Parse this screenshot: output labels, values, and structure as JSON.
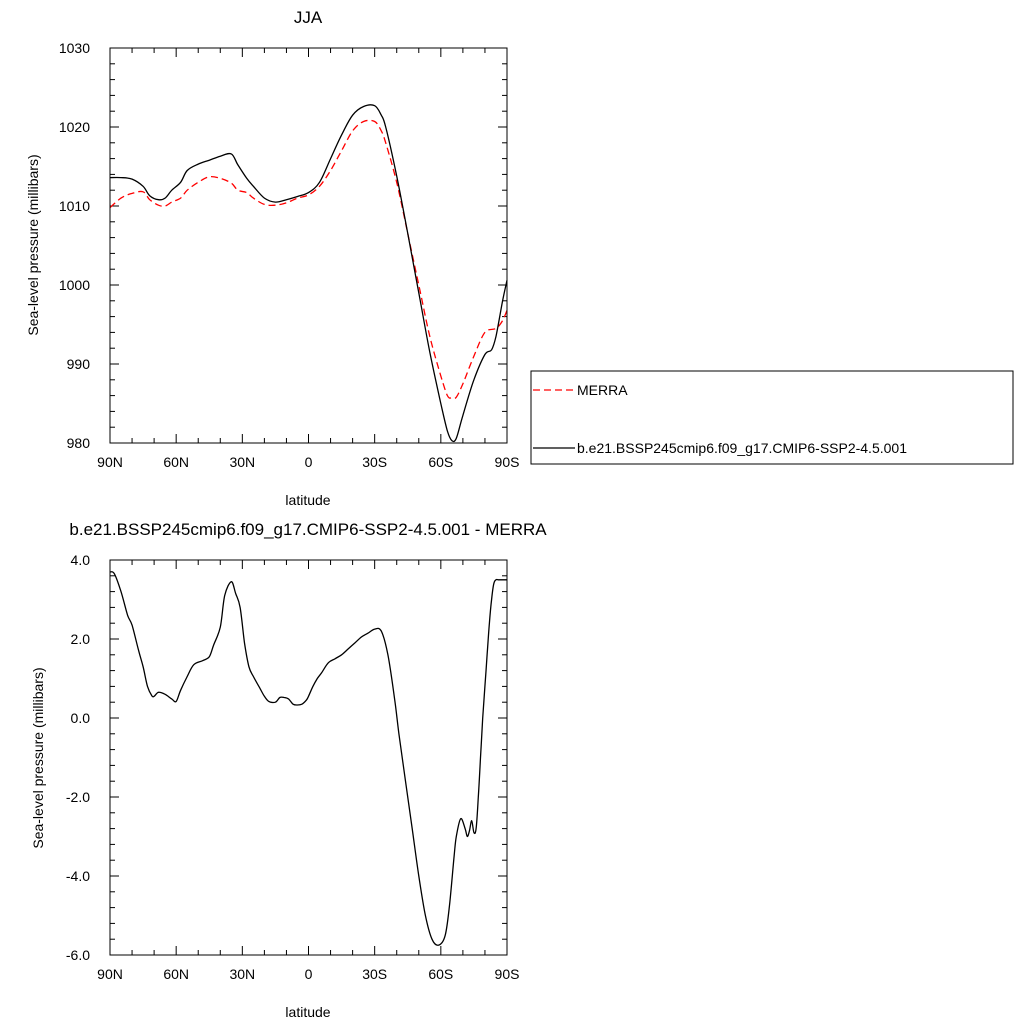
{
  "chart_data": [
    {
      "type": "line",
      "title": "JJA",
      "xlabel": "latitude",
      "ylabel": "Sea-level pressure (millibars)",
      "xlim": [
        -90,
        90
      ],
      "ylim": [
        980,
        1030
      ],
      "x_ticks": [
        -90,
        -60,
        -30,
        0,
        30,
        60,
        90
      ],
      "x_tick_labels": [
        "90N",
        "60N",
        "30N",
        "0",
        "30S",
        "60S",
        "90S"
      ],
      "y_ticks": [
        980,
        990,
        1000,
        1010,
        1020,
        1030
      ],
      "y_tick_labels": [
        "980",
        "990",
        "1000",
        "1010",
        "1020",
        "1030"
      ],
      "legend": "right",
      "grid": false,
      "series": [
        {
          "name": "MERRA",
          "color": "#ff0000",
          "dash": "dashed",
          "x": [
            -90,
            -85,
            -80,
            -75,
            -72,
            -68,
            -65,
            -62,
            -58,
            -55,
            -50,
            -45,
            -40,
            -35,
            -32,
            -28,
            -25,
            -20,
            -15,
            -10,
            -5,
            0,
            5,
            10,
            15,
            20,
            25,
            30,
            33,
            35,
            40,
            45,
            50,
            55,
            60,
            63,
            65,
            67,
            70,
            75,
            80,
            85,
            88,
            90
          ],
          "y": [
            1009.8,
            1011.0,
            1011.6,
            1011.8,
            1010.8,
            1010.1,
            1010.0,
            1010.5,
            1011.0,
            1012.0,
            1013.0,
            1013.7,
            1013.5,
            1012.9,
            1012.0,
            1011.7,
            1011.0,
            1010.2,
            1010.1,
            1010.4,
            1011.0,
            1011.4,
            1012.5,
            1014.5,
            1017.0,
            1019.5,
            1020.7,
            1020.7,
            1019.5,
            1018.0,
            1013.0,
            1006.5,
            1000.0,
            993.5,
            988.5,
            986.0,
            985.7,
            985.8,
            987.5,
            991.0,
            994.0,
            994.5,
            995.5,
            996.8
          ]
        },
        {
          "name": "b.e21.BSSP245cmip6.f09_g17.CMIP6-SSP2-4.5.001",
          "color": "#000000",
          "dash": "solid",
          "x": [
            -90,
            -85,
            -80,
            -75,
            -72,
            -68,
            -65,
            -62,
            -58,
            -55,
            -50,
            -45,
            -40,
            -35,
            -32,
            -28,
            -25,
            -20,
            -15,
            -10,
            -5,
            0,
            5,
            10,
            15,
            20,
            25,
            30,
            33,
            35,
            40,
            45,
            50,
            55,
            60,
            63,
            65,
            67,
            70,
            75,
            80,
            83,
            85,
            88,
            90
          ],
          "y": [
            1013.6,
            1013.6,
            1013.4,
            1012.5,
            1011.3,
            1010.8,
            1011.0,
            1012.0,
            1013.0,
            1014.5,
            1015.3,
            1015.8,
            1016.3,
            1016.6,
            1015.2,
            1013.5,
            1012.5,
            1011.0,
            1010.5,
            1010.8,
            1011.2,
            1011.7,
            1013.0,
            1016.0,
            1019.0,
            1021.5,
            1022.6,
            1022.7,
            1021.5,
            1020.0,
            1013.8,
            1006.5,
            999.0,
            991.5,
            985.0,
            981.5,
            980.3,
            980.6,
            983.5,
            988.0,
            991.2,
            991.8,
            993.5,
            998.0,
            1000.6
          ]
        }
      ]
    },
    {
      "type": "line",
      "title": "b.e21.BSSP245cmip6.f09_g17.CMIP6-SSP2-4.5.001 - MERRA",
      "xlabel": "latitude",
      "ylabel": "Sea-level pressure (millibars)",
      "xlim": [
        -90,
        90
      ],
      "ylim": [
        -6,
        4
      ],
      "x_ticks": [
        -90,
        -60,
        -30,
        0,
        30,
        60,
        90
      ],
      "x_tick_labels": [
        "90N",
        "60N",
        "30N",
        "0",
        "30S",
        "60S",
        "90S"
      ],
      "y_ticks": [
        -6,
        -4,
        -2,
        0,
        2,
        4
      ],
      "y_tick_labels": [
        "-6.0",
        "-4.0",
        "-2.0",
        "0.0",
        "2.0",
        "4.0"
      ],
      "grid": false,
      "series": [
        {
          "color": "#000000",
          "dash": "solid",
          "x": [
            -90,
            -88,
            -85,
            -82,
            -80,
            -77,
            -75,
            -73,
            -71,
            -70,
            -68,
            -65,
            -62,
            -60,
            -58,
            -55,
            -52,
            -48,
            -45,
            -43,
            -40,
            -38,
            -35,
            -33,
            -31,
            -29,
            -27,
            -25,
            -22,
            -20,
            -18,
            -15,
            -13,
            -11,
            -9,
            -7,
            -5,
            -3,
            -1,
            0,
            2,
            4,
            6,
            9,
            12,
            15,
            18,
            21,
            24,
            27,
            30,
            33,
            36,
            39,
            41,
            44,
            47,
            50,
            53,
            56,
            59,
            62,
            64,
            66,
            67,
            69,
            71,
            72,
            73,
            74,
            75,
            76,
            77,
            78,
            79,
            80,
            81,
            82,
            83,
            84,
            85,
            86,
            87,
            88,
            89,
            90
          ],
          "y": [
            3.7,
            3.65,
            3.2,
            2.6,
            2.35,
            1.7,
            1.3,
            0.8,
            0.56,
            0.55,
            0.65,
            0.6,
            0.48,
            0.42,
            0.7,
            1.05,
            1.35,
            1.45,
            1.55,
            1.85,
            2.3,
            3.1,
            3.45,
            3.15,
            2.8,
            1.9,
            1.3,
            1.05,
            0.75,
            0.55,
            0.42,
            0.4,
            0.52,
            0.52,
            0.48,
            0.35,
            0.33,
            0.35,
            0.45,
            0.55,
            0.8,
            1.0,
            1.15,
            1.4,
            1.5,
            1.6,
            1.75,
            1.9,
            2.05,
            2.15,
            2.25,
            2.2,
            1.6,
            0.5,
            -0.4,
            -1.6,
            -2.8,
            -4.0,
            -5.0,
            -5.6,
            -5.75,
            -5.5,
            -4.7,
            -3.5,
            -3.0,
            -2.55,
            -2.8,
            -3.0,
            -2.85,
            -2.6,
            -2.9,
            -2.8,
            -2.0,
            -1.0,
            0.0,
            0.8,
            1.6,
            2.4,
            3.0,
            3.4,
            3.5,
            3.5,
            3.5,
            3.5,
            3.5,
            3.5
          ]
        }
      ]
    }
  ]
}
